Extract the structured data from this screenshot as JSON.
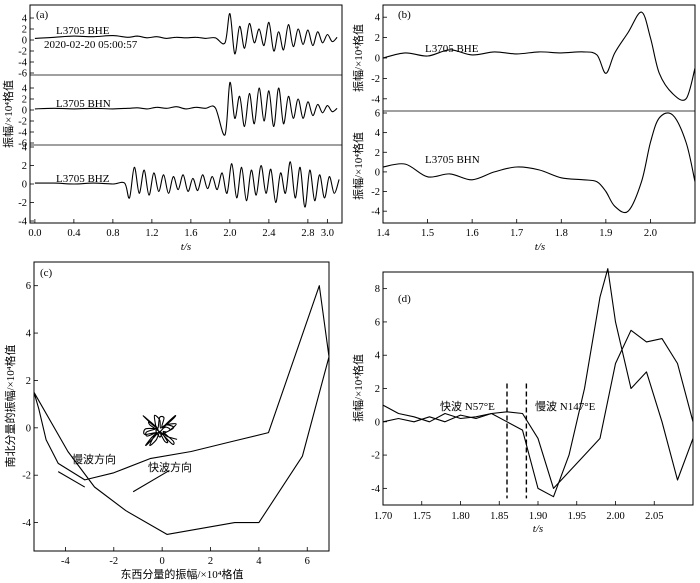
{
  "colors": {
    "trace_main": "#000000",
    "trace_secondary": "#555555",
    "background": "#ffffff"
  },
  "chart_data": [
    {
      "panel": "(a)",
      "type": "line",
      "xlabel": "t/s",
      "ylabel": "振幅/×10⁴格值",
      "xlim": [
        -0.05,
        3.15
      ],
      "xticks": [
        "0.0",
        "0.4",
        "0.8",
        "1.2",
        "1.6",
        "2.0",
        "2.4",
        "2.8",
        "3.0"
      ],
      "annotation": "2020-02-20  05:00:57",
      "subplots": [
        {
          "name": "L3705  BHE",
          "ylim": [
            -6,
            6
          ],
          "yticks": [
            "4",
            "2",
            "0",
            "-2",
            "-4",
            "-6"
          ],
          "x": [
            0.0,
            0.2,
            0.4,
            0.6,
            0.8,
            0.95,
            1.05,
            1.15,
            1.25,
            1.35,
            1.45,
            1.55,
            1.65,
            1.75,
            1.85,
            1.95,
            2.0,
            2.05,
            2.1,
            2.15,
            2.2,
            2.25,
            2.3,
            2.35,
            2.4,
            2.45,
            2.5,
            2.55,
            2.6,
            2.65,
            2.7,
            2.75,
            2.8,
            2.85,
            2.9,
            2.95,
            3.0,
            3.05,
            3.1
          ],
          "y": [
            0.3,
            0.5,
            0.7,
            0.6,
            0.8,
            0.5,
            0.7,
            0.4,
            0.6,
            0.3,
            0.5,
            0.4,
            0.5,
            0.3,
            0.4,
            -0.5,
            4.8,
            -2.5,
            2.5,
            -1.5,
            3.0,
            -0.5,
            2.0,
            -1.0,
            3.2,
            -2.0,
            1.5,
            -1.8,
            2.8,
            -1.2,
            2.0,
            -0.8,
            1.8,
            -1.0,
            1.5,
            -0.5,
            1.0,
            -0.3,
            0.5
          ]
        },
        {
          "name": "L3705  BHN",
          "ylim": [
            -6,
            6
          ],
          "yticks": [
            "4",
            "2",
            "0",
            "-2",
            "-4",
            "-6"
          ],
          "x": [
            0.0,
            0.2,
            0.4,
            0.6,
            0.8,
            0.95,
            1.05,
            1.15,
            1.25,
            1.35,
            1.45,
            1.55,
            1.65,
            1.75,
            1.85,
            1.95,
            2.0,
            2.05,
            2.1,
            2.15,
            2.2,
            2.25,
            2.3,
            2.35,
            2.4,
            2.45,
            2.5,
            2.55,
            2.6,
            2.65,
            2.7,
            2.75,
            2.8,
            2.85,
            2.9,
            2.95,
            3.0,
            3.05,
            3.1
          ],
          "y": [
            0.2,
            0.3,
            0.2,
            0.3,
            0.2,
            0.3,
            0.4,
            0.2,
            0.5,
            0.3,
            0.6,
            0.2,
            0.5,
            0.3,
            0.4,
            -4.5,
            5.0,
            -1.5,
            2.5,
            -3.0,
            3.0,
            -2.5,
            4.0,
            -2.0,
            3.5,
            -3.0,
            4.0,
            -2.5,
            2.5,
            -1.5,
            2.0,
            -1.5,
            1.5,
            -1.0,
            1.0,
            -0.5,
            0.8,
            -0.3,
            0.3
          ]
        },
        {
          "name": "L3705  BHZ",
          "ylim": [
            -4,
            4
          ],
          "yticks": [
            "4",
            "2",
            "0",
            "-2",
            "-4"
          ],
          "x": [
            0.0,
            0.2,
            0.4,
            0.6,
            0.8,
            0.92,
            0.97,
            1.02,
            1.07,
            1.12,
            1.17,
            1.22,
            1.27,
            1.32,
            1.37,
            1.42,
            1.47,
            1.52,
            1.57,
            1.62,
            1.67,
            1.72,
            1.77,
            1.82,
            1.87,
            1.92,
            1.97,
            2.02,
            2.07,
            2.12,
            2.17,
            2.22,
            2.27,
            2.32,
            2.37,
            2.42,
            2.47,
            2.52,
            2.57,
            2.62,
            2.67,
            2.72,
            2.77,
            2.82,
            2.87,
            2.92,
            2.97,
            3.02,
            3.07,
            3.12
          ],
          "y": [
            0.1,
            0.1,
            0.0,
            0.1,
            0.0,
            0.1,
            -1.5,
            1.8,
            -1.0,
            1.5,
            -1.2,
            1.2,
            -0.8,
            1.0,
            -1.0,
            0.8,
            -0.6,
            1.0,
            -0.8,
            0.6,
            -0.7,
            1.0,
            -0.5,
            0.8,
            -0.6,
            1.2,
            -1.0,
            2.2,
            -1.5,
            1.8,
            -1.8,
            1.5,
            -1.2,
            2.0,
            -1.0,
            1.6,
            -2.0,
            1.2,
            -1.0,
            2.4,
            -1.5,
            1.8,
            -2.5,
            1.5,
            -1.8,
            1.0,
            -1.5,
            0.8,
            -1.0,
            0.5
          ]
        }
      ]
    },
    {
      "panel": "(b)",
      "type": "line",
      "xlabel": "t/s",
      "ylabel": "振幅/×10⁴格值",
      "xlim": [
        1.4,
        2.1
      ],
      "xticks": [
        "1.4",
        "1.5",
        "1.6",
        "1.7",
        "1.8",
        "1.9",
        "2.0"
      ],
      "subplots": [
        {
          "name": "L3705  BHE",
          "ylim": [
            -5,
            5
          ],
          "yticks": [
            "4",
            "2",
            "0",
            "-2",
            "-4"
          ],
          "x": [
            1.4,
            1.45,
            1.5,
            1.55,
            1.6,
            1.65,
            1.7,
            1.75,
            1.8,
            1.85,
            1.88,
            1.9,
            1.92,
            1.95,
            1.98,
            2.0,
            2.02,
            2.05,
            2.08,
            2.1
          ],
          "y": [
            0.0,
            0.5,
            0.2,
            0.8,
            0.3,
            0.6,
            0.4,
            0.6,
            0.5,
            0.6,
            0.3,
            -1.5,
            0.5,
            2.5,
            4.5,
            2.0,
            -1.5,
            -3.5,
            -4.0,
            -1.0
          ]
        },
        {
          "name": "L3705  BHN",
          "ylim": [
            -5,
            6
          ],
          "yticks": [
            "6",
            "4",
            "2",
            "0",
            "-2",
            "-4"
          ],
          "x": [
            1.4,
            1.45,
            1.5,
            1.55,
            1.6,
            1.65,
            1.7,
            1.75,
            1.8,
            1.85,
            1.88,
            1.9,
            1.92,
            1.95,
            1.98,
            2.0,
            2.02,
            2.05,
            2.08,
            2.1
          ],
          "y": [
            0.5,
            0.8,
            -0.5,
            -0.2,
            -0.8,
            0.0,
            0.5,
            0.2,
            -0.6,
            -0.8,
            -1.0,
            -2.0,
            -3.5,
            -4.0,
            -1.0,
            3.0,
            5.5,
            5.8,
            3.0,
            -1.0
          ]
        }
      ]
    },
    {
      "panel": "(c)",
      "type": "line",
      "xlabel": "东西分量的振幅/×10⁴格值",
      "ylabel": "南北分量的振幅/×10⁴格值",
      "xlim": [
        -5.3,
        6.9
      ],
      "ylim": [
        -5.2,
        7.0
      ],
      "xticks": [
        "-4",
        "-2",
        "0",
        "2",
        "4",
        "6"
      ],
      "yticks": [
        "6",
        "4",
        "2",
        "0",
        "-2",
        "-4"
      ],
      "annotations": [
        "慢波方向",
        "快波方向"
      ],
      "x": [
        -5.3,
        -5.1,
        -4.8,
        -4.3,
        -3.2,
        -2.0,
        -0.5,
        1.2,
        2.8,
        4.4,
        6.5,
        6.9,
        5.8,
        4.0,
        3.0,
        0.2,
        -1.5,
        -2.8,
        -3.9,
        -5.3
      ],
      "y": [
        1.5,
        0.8,
        -0.5,
        -1.5,
        -2.2,
        -1.9,
        -1.3,
        -1.0,
        -0.6,
        -0.2,
        6.0,
        3.0,
        -1.2,
        -4.0,
        -4.0,
        -4.5,
        -3.5,
        -2.5,
        -1.0,
        1.5
      ]
    },
    {
      "panel": "(d)",
      "type": "line",
      "xlabel": "t/s",
      "ylabel": "振幅/×10⁴格值",
      "xlim": [
        1.7,
        2.1
      ],
      "ylim": [
        -5,
        9
      ],
      "xticks": [
        "1.70",
        "1.75",
        "1.80",
        "1.85",
        "1.90",
        "1.95",
        "2.00",
        "2.05"
      ],
      "yticks": [
        "8",
        "6",
        "4",
        "2",
        "0",
        "-2",
        "-4"
      ],
      "markers": [
        {
          "x": 1.86,
          "label": "快波  N57°E"
        },
        {
          "x": 1.885,
          "label": "慢波  N147°E"
        }
      ],
      "series": [
        {
          "x": [
            1.7,
            1.72,
            1.74,
            1.76,
            1.78,
            1.8,
            1.82,
            1.84,
            1.86,
            1.88,
            1.9,
            1.92,
            1.94,
            1.96,
            1.98,
            1.99,
            2.0,
            2.02,
            2.04,
            2.06,
            2.08,
            2.1
          ],
          "y": [
            1.0,
            0.5,
            0.3,
            0.0,
            0.5,
            0.2,
            0.3,
            0.5,
            0.0,
            -0.5,
            -4.0,
            -4.5,
            -2.0,
            2.0,
            7.5,
            9.2,
            6.0,
            2.0,
            3.0,
            0.0,
            -3.5,
            -1.0
          ]
        },
        {
          "x": [
            1.7,
            1.72,
            1.74,
            1.76,
            1.78,
            1.8,
            1.82,
            1.84,
            1.86,
            1.88,
            1.9,
            1.92,
            1.94,
            1.96,
            1.98,
            2.0,
            2.02,
            2.04,
            2.06,
            2.08,
            2.1
          ],
          "y": [
            0.0,
            0.2,
            0.0,
            0.3,
            0.0,
            0.4,
            0.2,
            0.5,
            0.6,
            0.5,
            -1.0,
            -4.0,
            -3.0,
            -2.0,
            -1.0,
            3.5,
            5.5,
            4.8,
            5.0,
            3.5,
            0.0
          ]
        }
      ]
    }
  ]
}
